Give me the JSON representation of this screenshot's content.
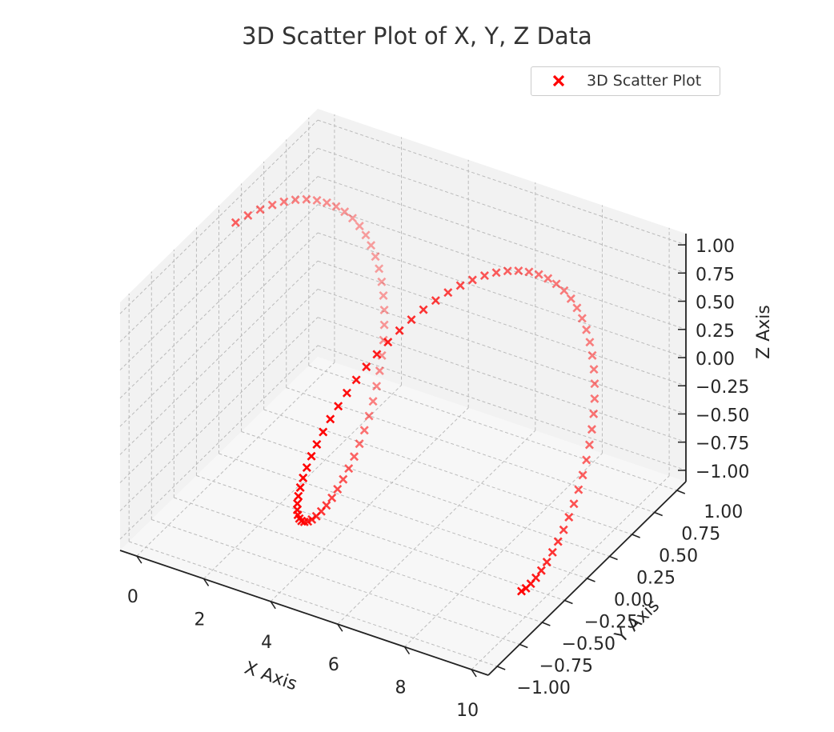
{
  "title": "3D Scatter Plot of X, Y, Z Data",
  "legend": {
    "label": "3D Scatter Plot"
  },
  "colors": {
    "marker": "#ff0000",
    "pane": "#f2f2f2",
    "grid": "#bbbbbb"
  },
  "chart_data": {
    "type": "scatter",
    "projection": "3d",
    "marker": "x",
    "title": "3D Scatter Plot of X, Y, Z Data",
    "xlabel": "X Axis",
    "ylabel": "Y Axis",
    "zlabel": "Z Axis",
    "xlim": [
      -0.5,
      10.5
    ],
    "ylim": [
      -1.1,
      1.1
    ],
    "zlim": [
      -1.1,
      1.1
    ],
    "xticks": [
      "0",
      "2",
      "4",
      "6",
      "8",
      "10"
    ],
    "yticks": [
      "−1.00",
      "−0.75",
      "−0.50",
      "−0.25",
      "0.00",
      "0.25",
      "0.50",
      "0.75",
      "1.00"
    ],
    "zticks": [
      "−1.00",
      "−0.75",
      "−0.50",
      "−0.25",
      "0.00",
      "0.25",
      "0.50",
      "0.75",
      "1.00"
    ],
    "grid": true,
    "legend_position": "top-right",
    "series": [
      {
        "name": "3D Scatter Plot",
        "x": [
          0,
          0.1,
          0.2,
          0.3,
          0.4,
          0.5,
          0.6,
          0.7,
          0.8,
          0.9,
          1.0,
          1.1,
          1.2,
          1.3,
          1.4,
          1.5,
          1.6,
          1.7,
          1.8,
          1.9,
          2.0,
          2.1,
          2.2,
          2.3,
          2.4,
          2.5,
          2.6,
          2.7,
          2.8,
          2.9,
          3.0,
          3.1,
          3.2,
          3.3,
          3.4,
          3.5,
          3.6,
          3.7,
          3.8,
          3.9,
          4.0,
          4.1,
          4.2,
          4.3,
          4.4,
          4.5,
          4.6,
          4.7,
          4.8,
          4.9,
          5.0,
          5.1,
          5.2,
          5.3,
          5.4,
          5.5,
          5.6,
          5.7,
          5.8,
          5.9,
          6.0,
          6.1,
          6.2,
          6.3,
          6.4,
          6.5,
          6.6,
          6.7,
          6.8,
          6.9,
          7.0,
          7.1,
          7.2,
          7.3,
          7.4,
          7.5,
          7.6,
          7.7,
          7.8,
          7.9,
          8.0,
          8.1,
          8.2,
          8.3,
          8.4,
          8.5,
          8.6,
          8.7,
          8.8,
          8.9,
          9.0,
          9.1,
          9.2,
          9.3,
          9.4,
          9.5,
          9.6,
          9.7,
          9.8,
          9.9,
          10.0
        ],
        "y": [
          0.0,
          0.1,
          0.199,
          0.296,
          0.389,
          0.479,
          0.565,
          0.644,
          0.717,
          0.783,
          0.841,
          0.891,
          0.932,
          0.964,
          0.985,
          0.997,
          1.0,
          0.992,
          0.974,
          0.946,
          0.909,
          0.863,
          0.808,
          0.746,
          0.675,
          0.598,
          0.516,
          0.427,
          0.335,
          0.239,
          0.141,
          0.042,
          -0.058,
          -0.158,
          -0.256,
          -0.351,
          -0.443,
          -0.53,
          -0.612,
          -0.688,
          -0.757,
          -0.818,
          -0.872,
          -0.916,
          -0.952,
          -0.978,
          -0.994,
          -1.0,
          -0.996,
          -0.982,
          -0.959,
          -0.926,
          -0.883,
          -0.832,
          -0.773,
          -0.706,
          -0.631,
          -0.551,
          -0.465,
          -0.374,
          -0.279,
          -0.182,
          -0.083,
          0.017,
          0.117,
          0.215,
          0.312,
          0.405,
          0.494,
          0.578,
          0.657,
          0.729,
          0.794,
          0.85,
          0.899,
          0.938,
          0.968,
          0.988,
          0.998,
          0.999,
          0.989,
          0.97,
          0.941,
          0.903,
          0.855,
          0.798,
          0.734,
          0.663,
          0.585,
          0.501,
          0.412,
          0.319,
          0.223,
          0.124,
          0.025,
          -0.075,
          -0.174,
          -0.272,
          -0.366,
          -0.457,
          -0.544
        ],
        "z": [
          1.0,
          0.995,
          0.98,
          0.955,
          0.921,
          0.878,
          0.825,
          0.765,
          0.697,
          0.622,
          0.54,
          0.454,
          0.362,
          0.267,
          0.17,
          0.071,
          -0.029,
          -0.129,
          -0.227,
          -0.323,
          -0.416,
          -0.505,
          -0.589,
          -0.666,
          -0.737,
          -0.801,
          -0.857,
          -0.904,
          -0.942,
          -0.971,
          -0.99,
          -0.999,
          -0.998,
          -0.987,
          -0.967,
          -0.936,
          -0.897,
          -0.848,
          -0.791,
          -0.726,
          -0.654,
          -0.575,
          -0.49,
          -0.401,
          -0.307,
          -0.211,
          -0.112,
          -0.012,
          0.087,
          0.187,
          0.284,
          0.378,
          0.469,
          0.554,
          0.635,
          0.709,
          0.776,
          0.835,
          0.886,
          0.927,
          0.96,
          0.983,
          0.997,
          1.0,
          0.994,
          0.977,
          0.95,
          0.914,
          0.869,
          0.815,
          0.754,
          0.685,
          0.609,
          0.527,
          0.439,
          0.347,
          0.252,
          0.154,
          0.055,
          -0.046,
          -0.146,
          -0.244,
          -0.339,
          -0.432,
          -0.519,
          -0.602,
          -0.679,
          -0.748,
          -0.811,
          -0.865,
          -0.911,
          -0.947,
          -0.974,
          -0.991,
          -0.999,
          -0.997,
          -0.985,
          -0.963,
          -0.932,
          -0.891,
          -0.839
        ]
      }
    ]
  }
}
